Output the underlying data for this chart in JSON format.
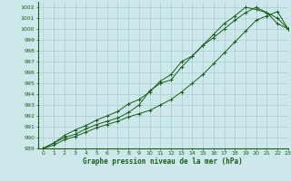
{
  "title": "Graphe pression niveau de la mer (hPa)",
  "bg_color": "#cce8ea",
  "grid_color": "#aacdd0",
  "line_color": "#1a5c1a",
  "marker_color": "#1a5c1a",
  "xlim": [
    -0.5,
    23
  ],
  "ylim": [
    989,
    1002.5
  ],
  "xticks": [
    0,
    1,
    2,
    3,
    4,
    5,
    6,
    7,
    8,
    9,
    10,
    11,
    12,
    13,
    14,
    15,
    16,
    17,
    18,
    19,
    20,
    21,
    22,
    23
  ],
  "yticks": [
    989,
    990,
    991,
    992,
    993,
    994,
    995,
    996,
    997,
    998,
    999,
    1000,
    1001,
    1002
  ],
  "series1": {
    "x": [
      0,
      1,
      2,
      3,
      4,
      5,
      6,
      7,
      8,
      9,
      10,
      11,
      12,
      13,
      14,
      15,
      16,
      17,
      18,
      19,
      20,
      21,
      22,
      23
    ],
    "y": [
      989.0,
      989.5,
      990.0,
      990.3,
      990.8,
      991.2,
      991.5,
      991.8,
      992.3,
      993.0,
      994.3,
      995.0,
      995.3,
      996.5,
      997.5,
      998.5,
      999.5,
      1000.5,
      1001.2,
      1002.0,
      1001.8,
      1001.5,
      1001.0,
      1000.0
    ]
  },
  "series2": {
    "x": [
      0,
      1,
      2,
      3,
      4,
      5,
      6,
      7,
      8,
      9,
      10,
      11,
      12,
      13,
      14,
      15,
      16,
      17,
      18,
      19,
      20,
      21,
      22,
      23
    ],
    "y": [
      989.0,
      989.5,
      990.2,
      990.7,
      991.1,
      991.6,
      992.0,
      992.4,
      993.1,
      993.5,
      994.2,
      995.2,
      995.8,
      997.0,
      997.5,
      998.5,
      999.2,
      1000.0,
      1000.8,
      1001.5,
      1002.0,
      1001.5,
      1000.5,
      1000.0
    ]
  },
  "series3": {
    "x": [
      0,
      1,
      2,
      3,
      4,
      5,
      6,
      7,
      8,
      9,
      10,
      11,
      12,
      13,
      14,
      15,
      16,
      17,
      18,
      19,
      20,
      21,
      22,
      23
    ],
    "y": [
      989.0,
      989.3,
      989.8,
      990.1,
      990.5,
      990.9,
      991.2,
      991.5,
      991.9,
      992.2,
      992.5,
      993.0,
      993.5,
      994.2,
      995.0,
      995.8,
      996.8,
      997.8,
      998.8,
      999.8,
      1000.8,
      1001.2,
      1001.6,
      1000.0
    ]
  }
}
